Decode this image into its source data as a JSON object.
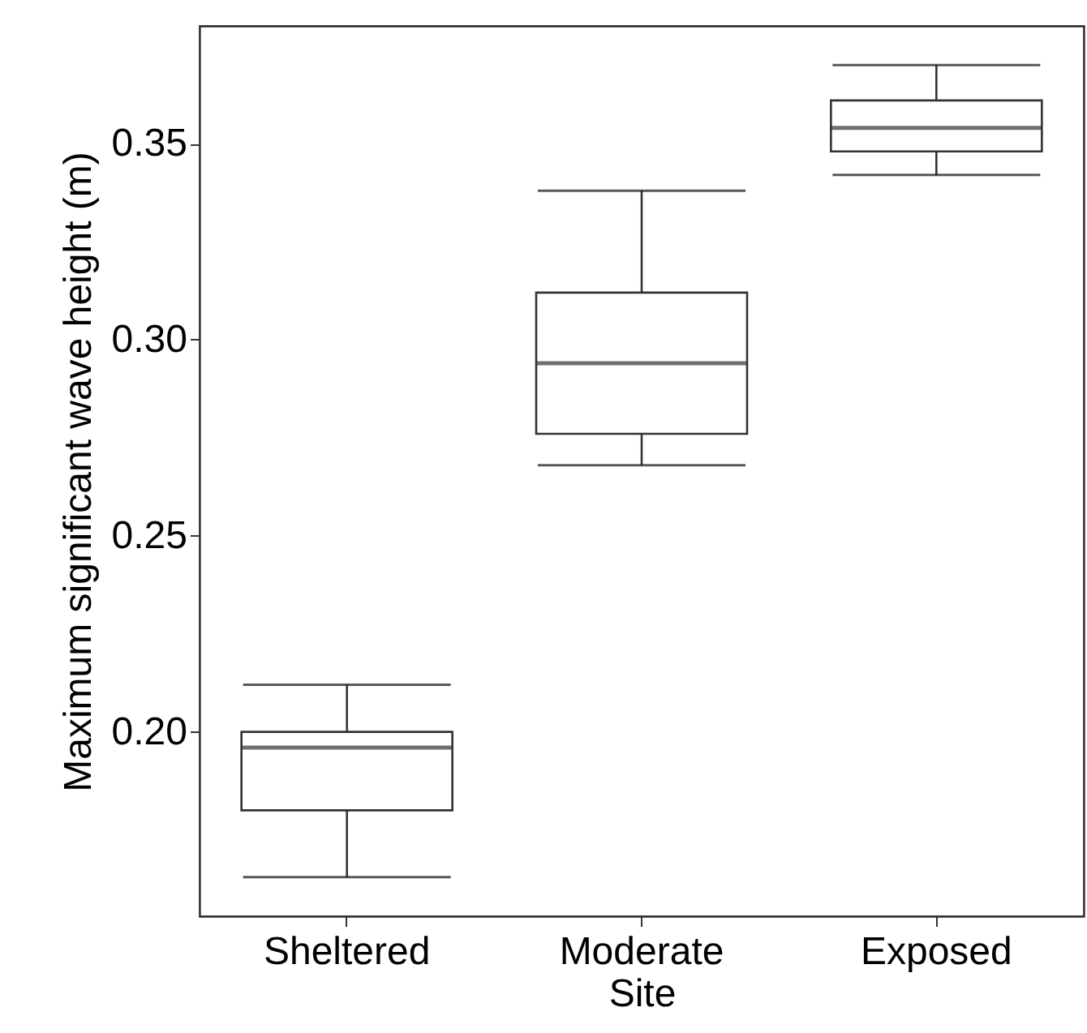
{
  "chart_data": {
    "type": "box",
    "xlabel": "Site",
    "ylabel": "Maximum significant wave height (m)",
    "categories": [
      "Sheltered",
      "Moderate",
      "Exposed"
    ],
    "boxes": [
      {
        "low": 0.163,
        "q1": 0.18,
        "median": 0.196,
        "q3": 0.2,
        "high": 0.212
      },
      {
        "low": 0.268,
        "q1": 0.276,
        "median": 0.294,
        "q3": 0.312,
        "high": 0.338
      },
      {
        "low": 0.342,
        "q1": 0.348,
        "median": 0.354,
        "q3": 0.361,
        "high": 0.37
      }
    ],
    "ylim": [
      0.153,
      0.38
    ],
    "yticks": [
      {
        "value": 0.2,
        "label": "0.20"
      },
      0.25,
      {
        "value": 0.3,
        "label": "0.30"
      },
      0.35
    ],
    "grid": false
  }
}
